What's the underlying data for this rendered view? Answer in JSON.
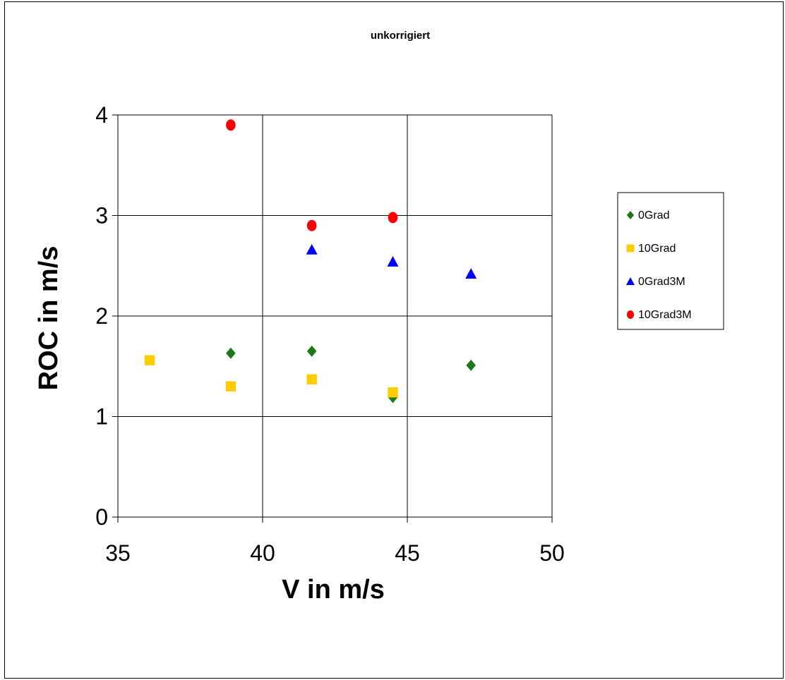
{
  "chart_data": {
    "type": "scatter",
    "title": "unkorrigiert",
    "xlabel": "V in m/s",
    "ylabel": "ROC in m/s",
    "xlim": [
      35,
      50
    ],
    "ylim": [
      0,
      4
    ],
    "xticks": [
      35,
      40,
      45,
      50
    ],
    "yticks": [
      0,
      1,
      2,
      3,
      4
    ],
    "grid": true,
    "legend_position": "right",
    "series": [
      {
        "name": "0Grad",
        "marker": "diamond",
        "color": "#1a7a1a",
        "points": [
          [
            38.9,
            1.63
          ],
          [
            41.7,
            1.65
          ],
          [
            44.5,
            1.19
          ],
          [
            47.2,
            1.51
          ]
        ]
      },
      {
        "name": "10Grad",
        "marker": "square",
        "color": "#ffcc00",
        "points": [
          [
            36.1,
            1.56
          ],
          [
            38.9,
            1.3
          ],
          [
            41.7,
            1.37
          ],
          [
            44.5,
            1.24
          ]
        ]
      },
      {
        "name": "0Grad3M",
        "marker": "triangle",
        "color": "#0000ff",
        "points": [
          [
            41.7,
            2.66
          ],
          [
            44.5,
            2.54
          ],
          [
            47.2,
            2.42
          ]
        ]
      },
      {
        "name": "10Grad3M",
        "marker": "circle",
        "color": "#ff0000",
        "points": [
          [
            38.9,
            3.9
          ],
          [
            41.7,
            2.9
          ],
          [
            44.5,
            2.98
          ]
        ]
      }
    ]
  }
}
